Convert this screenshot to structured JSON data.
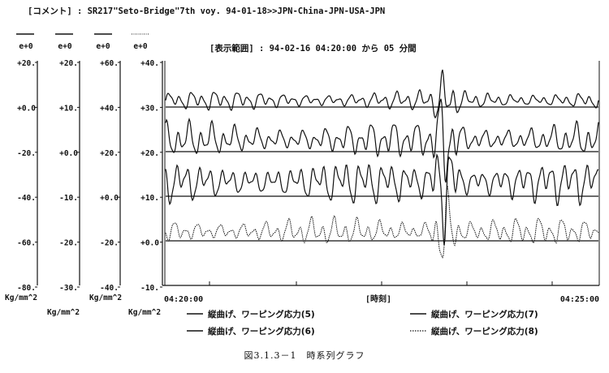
{
  "header": {
    "comment": "[コメント] : SR217\"Seto-Bridge\"7th voy. 94-01-18>>JPN-China-JPN-USA-JPN",
    "display_range": "[表示範囲] : 94-02-16 04:20:00 から 05 分間"
  },
  "axes": [
    {
      "header": "e+0",
      "ticks": [
        "+20.",
        "+0.0",
        "-20.",
        "-40.",
        "-60.",
        "-80."
      ],
      "unit": ""
    },
    {
      "header": "e+0",
      "ticks": [
        "+20.",
        "+10.",
        "+0.0",
        "-10.",
        "-20.",
        "-30."
      ],
      "unit": "Kg/mm^2"
    },
    {
      "header": "e+0",
      "ticks": [
        "+60.",
        "+40.",
        "+20.",
        "+0.0",
        "-20.",
        "-40."
      ],
      "unit": "Kg/mm^2"
    },
    {
      "header": "e+0",
      "ticks": [
        "+40.",
        "+30.",
        "+20.",
        "+10.",
        "+0.0",
        "-10."
      ],
      "unit": "Kg/mm^2"
    }
  ],
  "unit_left": "Kg/mm^2",
  "caption": "図3.1.3－1　時系列グラフ",
  "chart_data": {
    "type": "line",
    "x_start_label": "04:20:00",
    "x_center_label": "[時刻]",
    "x_end_label": "04:25:00",
    "ylim": [
      -10,
      40
    ],
    "series": [
      {
        "name": "縦曲げ、ワーピング応力(5)",
        "baseline": 30,
        "style": "solid",
        "amplitude": 2.5,
        "burst": 5
      },
      {
        "name": "縦曲げ、ワーピング応力(6)",
        "baseline": 20,
        "style": "solid",
        "amplitude": 4.5,
        "burst": 9
      },
      {
        "name": "縦曲げ、ワーピング応力(7)",
        "baseline": 10,
        "style": "solid",
        "amplitude": 5.5,
        "burst": 11
      },
      {
        "name": "縦曲げ、ワーピング応力(8)",
        "baseline": 0,
        "style": "dotted",
        "amplitude": 3.5,
        "burst": 9
      }
    ]
  }
}
